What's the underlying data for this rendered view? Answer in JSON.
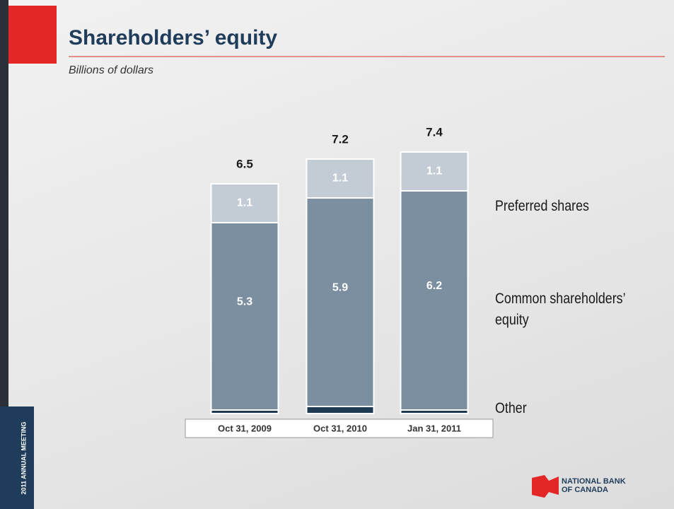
{
  "chart_data": {
    "type": "stacked_bar",
    "title": "Shareholders’ equity",
    "subtitle": "Billions of dollars",
    "categories": [
      "Oct 31, 2009",
      "Oct 31, 2010",
      "Jan 31, 2011"
    ],
    "series": [
      {
        "name": "Other",
        "color": "#1d3a52",
        "values": [
          0.1,
          0.2,
          0.1
        ]
      },
      {
        "name": "Common shareholders’ equity",
        "color": "#7b8fa1",
        "values": [
          5.3,
          5.9,
          6.2
        ]
      },
      {
        "name": "Preferred shares",
        "color": "#c3ccd5",
        "values": [
          1.1,
          1.1,
          1.1
        ]
      }
    ],
    "totals": [
      6.5,
      7.2,
      7.4
    ]
  },
  "slide": {
    "side_label": "2011 ANNUAL MEETING",
    "logo": [
      "NATIONAL BANK",
      "OF CANADA"
    ]
  }
}
